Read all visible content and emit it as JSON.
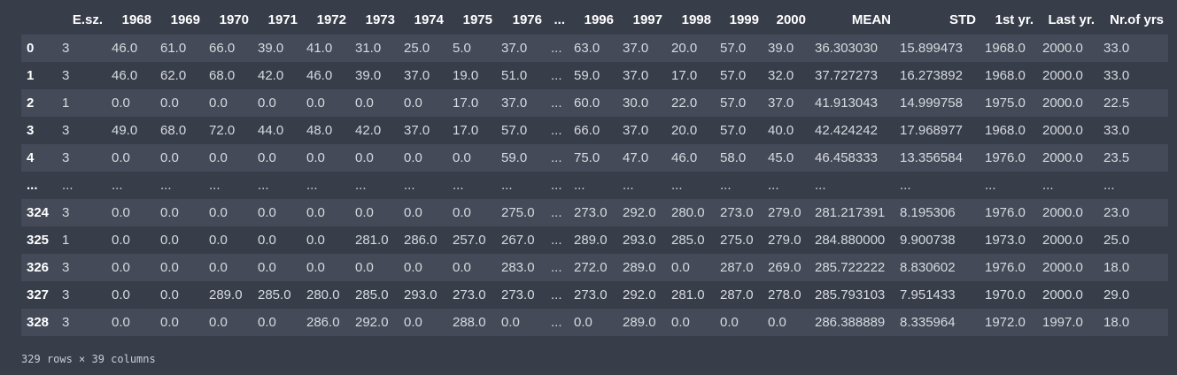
{
  "columns": [
    "",
    "E.sz.",
    "1968",
    "1969",
    "1970",
    "1971",
    "1972",
    "1973",
    "1974",
    "1975",
    "1976",
    "...",
    "1996",
    "1997",
    "1998",
    "1999",
    "2000",
    "MEAN",
    "STD",
    "1st yr.",
    "Last yr.",
    "Nr.of yrs"
  ],
  "rows": [
    [
      "0",
      "3",
      "46.0",
      "61.0",
      "66.0",
      "39.0",
      "41.0",
      "31.0",
      "25.0",
      "5.0",
      "37.0",
      "...",
      "63.0",
      "37.0",
      "20.0",
      "57.0",
      "39.0",
      "36.303030",
      "15.899473",
      "1968.0",
      "2000.0",
      "33.0"
    ],
    [
      "1",
      "3",
      "46.0",
      "62.0",
      "68.0",
      "42.0",
      "46.0",
      "39.0",
      "37.0",
      "19.0",
      "51.0",
      "...",
      "59.0",
      "37.0",
      "17.0",
      "57.0",
      "32.0",
      "37.727273",
      "16.273892",
      "1968.0",
      "2000.0",
      "33.0"
    ],
    [
      "2",
      "1",
      "0.0",
      "0.0",
      "0.0",
      "0.0",
      "0.0",
      "0.0",
      "0.0",
      "17.0",
      "37.0",
      "...",
      "60.0",
      "30.0",
      "22.0",
      "57.0",
      "37.0",
      "41.913043",
      "14.999758",
      "1975.0",
      "2000.0",
      "22.5"
    ],
    [
      "3",
      "3",
      "49.0",
      "68.0",
      "72.0",
      "44.0",
      "48.0",
      "42.0",
      "37.0",
      "17.0",
      "57.0",
      "...",
      "66.0",
      "37.0",
      "20.0",
      "57.0",
      "40.0",
      "42.424242",
      "17.968977",
      "1968.0",
      "2000.0",
      "33.0"
    ],
    [
      "4",
      "3",
      "0.0",
      "0.0",
      "0.0",
      "0.0",
      "0.0",
      "0.0",
      "0.0",
      "0.0",
      "59.0",
      "...",
      "75.0",
      "47.0",
      "46.0",
      "58.0",
      "45.0",
      "46.458333",
      "13.356584",
      "1976.0",
      "2000.0",
      "23.5"
    ],
    [
      "...",
      "...",
      "...",
      "...",
      "...",
      "...",
      "...",
      "...",
      "...",
      "...",
      "...",
      "...",
      "...",
      "...",
      "...",
      "...",
      "...",
      "...",
      "...",
      "...",
      "...",
      "..."
    ],
    [
      "324",
      "3",
      "0.0",
      "0.0",
      "0.0",
      "0.0",
      "0.0",
      "0.0",
      "0.0",
      "0.0",
      "275.0",
      "...",
      "273.0",
      "292.0",
      "280.0",
      "273.0",
      "279.0",
      "281.217391",
      "8.195306",
      "1976.0",
      "2000.0",
      "23.0"
    ],
    [
      "325",
      "1",
      "0.0",
      "0.0",
      "0.0",
      "0.0",
      "0.0",
      "281.0",
      "286.0",
      "257.0",
      "267.0",
      "...",
      "289.0",
      "293.0",
      "285.0",
      "275.0",
      "279.0",
      "284.880000",
      "9.900738",
      "1973.0",
      "2000.0",
      "25.0"
    ],
    [
      "326",
      "3",
      "0.0",
      "0.0",
      "0.0",
      "0.0",
      "0.0",
      "0.0",
      "0.0",
      "0.0",
      "283.0",
      "...",
      "272.0",
      "289.0",
      "0.0",
      "287.0",
      "269.0",
      "285.722222",
      "8.830602",
      "1976.0",
      "2000.0",
      "18.0"
    ],
    [
      "327",
      "3",
      "0.0",
      "0.0",
      "289.0",
      "285.0",
      "280.0",
      "285.0",
      "293.0",
      "273.0",
      "273.0",
      "...",
      "273.0",
      "292.0",
      "281.0",
      "287.0",
      "278.0",
      "285.793103",
      "7.951433",
      "1970.0",
      "2000.0",
      "29.0"
    ],
    [
      "328",
      "3",
      "0.0",
      "0.0",
      "0.0",
      "0.0",
      "286.0",
      "292.0",
      "0.0",
      "288.0",
      "0.0",
      "...",
      "0.0",
      "289.0",
      "0.0",
      "0.0",
      "0.0",
      "286.388889",
      "8.335964",
      "1972.0",
      "1997.0",
      "18.0"
    ]
  ],
  "footer": "329 rows × 39 columns",
  "colors": {
    "background": "#383d4a",
    "row_stripe": "#444a57",
    "text": "#d7dae0",
    "header_text": "#ffffff"
  }
}
